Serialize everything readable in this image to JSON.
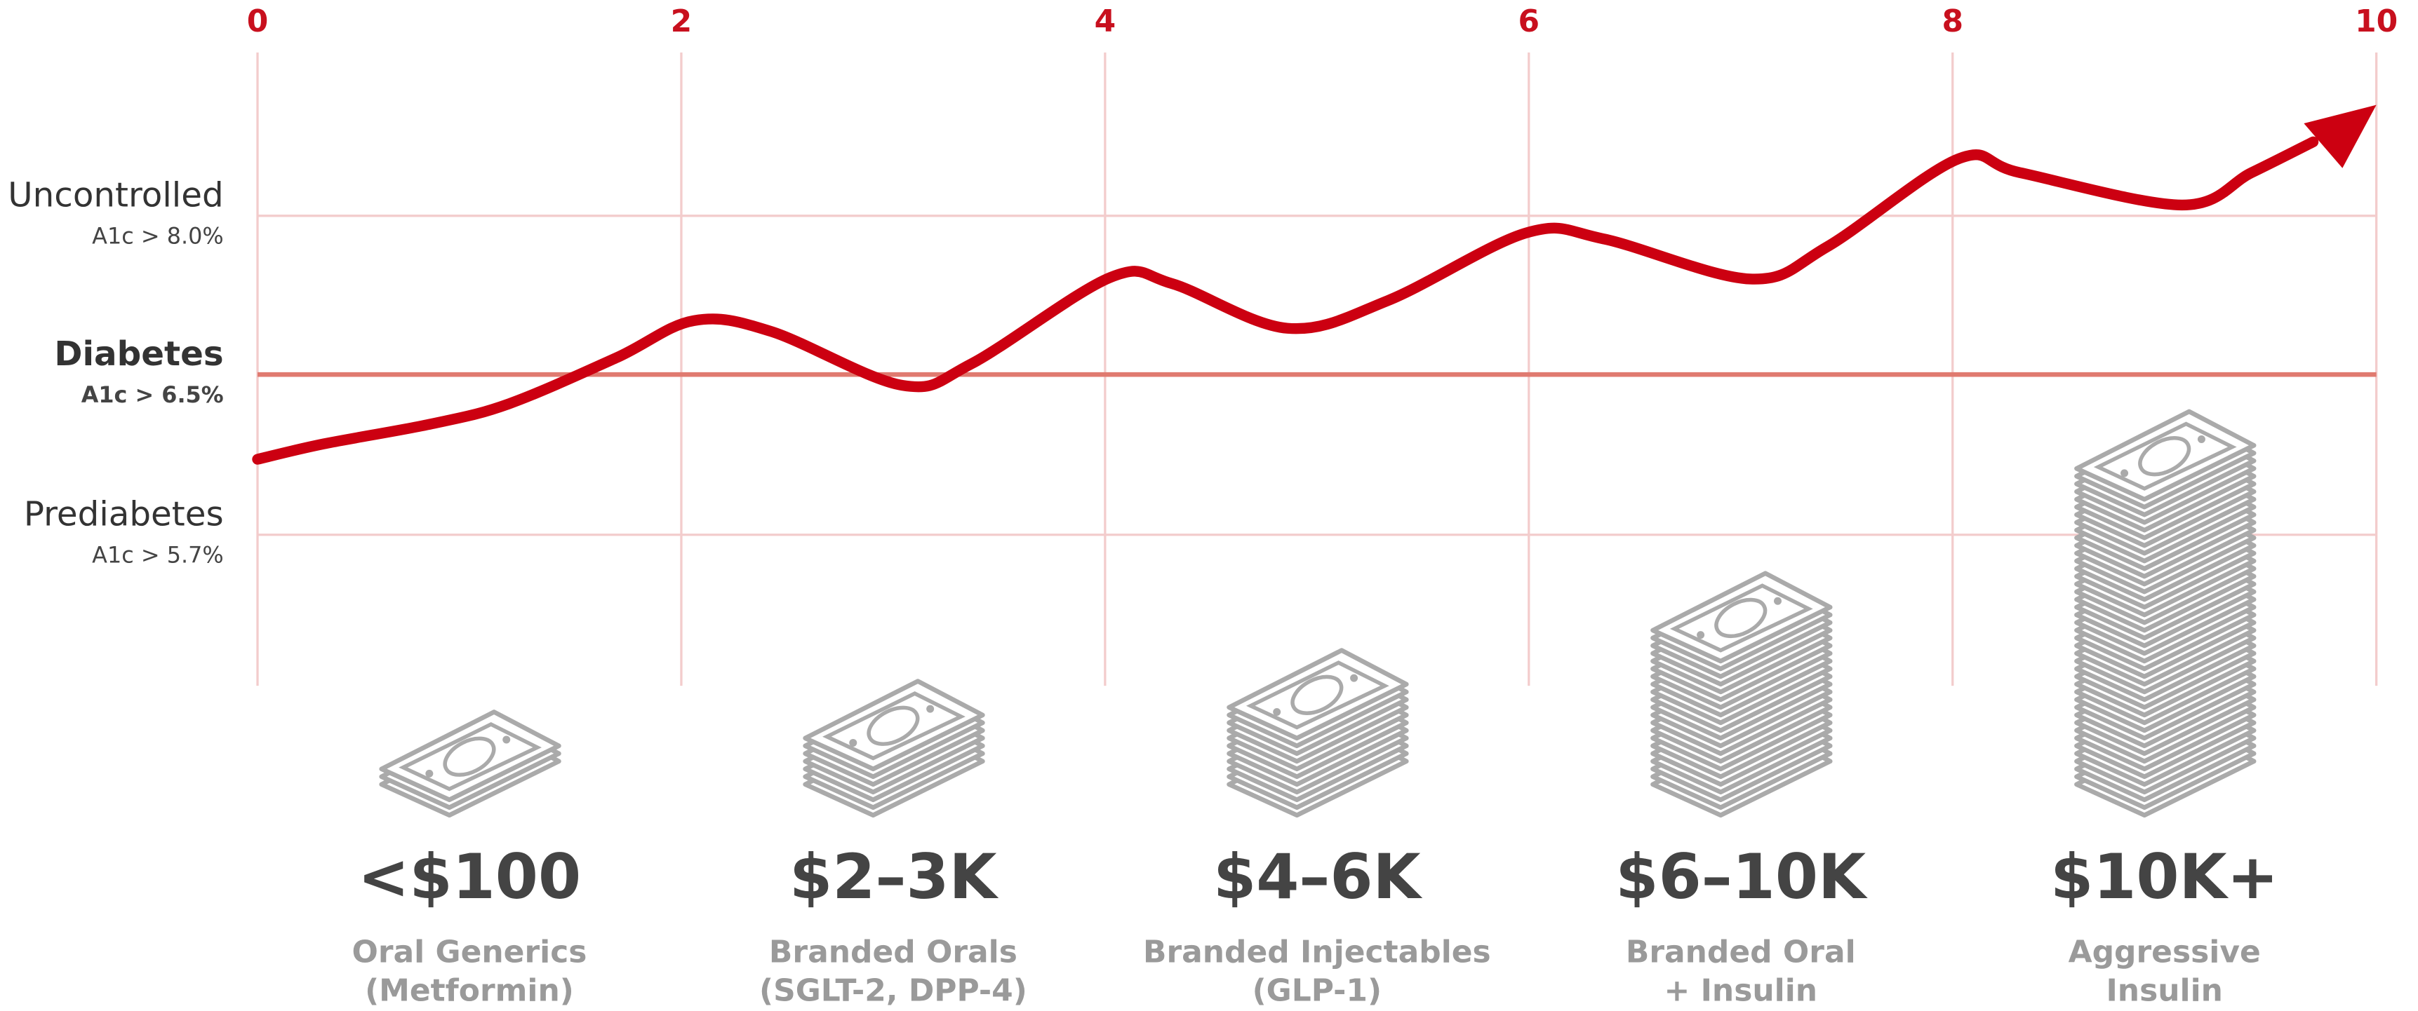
{
  "axis": {
    "xlim": [
      0,
      10
    ],
    "xticks": [
      0,
      2,
      4,
      6,
      8,
      10
    ]
  },
  "levels": [
    {
      "name": "Uncontrolled",
      "threshold": "A1c > 8.0%"
    },
    {
      "name": "Diabetes",
      "threshold": "A1c > 6.5%"
    },
    {
      "name": "Prediabetes",
      "threshold": "A1c > 5.7%"
    }
  ],
  "tiers": [
    {
      "price": "<$100",
      "lines": [
        "Oral Generics",
        "(Metformin)"
      ]
    },
    {
      "price": "$2–3K",
      "lines": [
        "Branded Orals",
        "(SGLT-2, DPP-4)"
      ]
    },
    {
      "price": "$4–6K",
      "lines": [
        "Branded Injectables",
        "(GLP-1)"
      ]
    },
    {
      "price": "$6–10K",
      "lines": [
        "Branded Oral",
        "+ Insulin"
      ]
    },
    {
      "price": "$10K+",
      "lines": [
        "Aggressive",
        "Insulin"
      ]
    }
  ]
}
